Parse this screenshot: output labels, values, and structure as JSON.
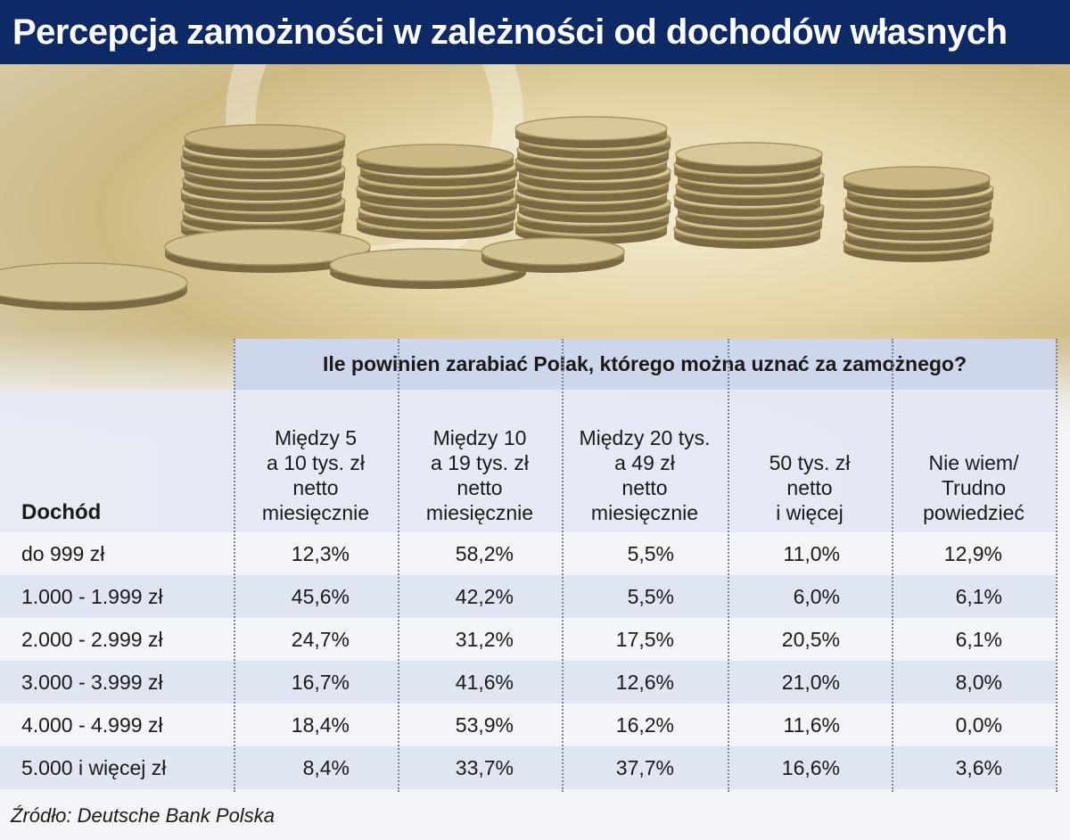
{
  "title": "Percepcja zamożności w zależności od dochodów własnych",
  "source": "Źródło: Deutsche Bank Polska",
  "chart_data": {
    "type": "table",
    "question": "Ile powinien zarabiać Polak, którego można uznać za zamożnego?",
    "row_header": "Dochód",
    "columns": [
      "Między 5\na 10 tys. zł\nnetto\nmiesięcznie",
      "Między 10\na 19 tys. zł\nnetto\nmiesięcznie",
      "Między 20 tys.\na 49 zł\nnetto\nmiesięcznie",
      "50 tys. zł\nnetto\ni więcej",
      "Nie wiem/\nTrudno\npowiedzieć"
    ],
    "rows": [
      {
        "label": "do 999 zł",
        "values": [
          "12,3%",
          "58,2%",
          "5,5%",
          "11,0%",
          "12,9%"
        ]
      },
      {
        "label": "1.000 - 1.999 zł",
        "values": [
          "45,6%",
          "42,2%",
          "5,5%",
          "6,0%",
          "6,1%"
        ]
      },
      {
        "label": "2.000 - 2.999 zł",
        "values": [
          "24,7%",
          "31,2%",
          "17,5%",
          "20,5%",
          "6,1%"
        ]
      },
      {
        "label": "3.000 - 3.999 zł",
        "values": [
          "16,7%",
          "41,6%",
          "12,6%",
          "21,0%",
          "8,0%"
        ]
      },
      {
        "label": "4.000 - 4.999 zł",
        "values": [
          "18,4%",
          "53,9%",
          "16,2%",
          "11,6%",
          "0,0%"
        ]
      },
      {
        "label": "5.000 i więcej zł",
        "values": [
          "8,4%",
          "33,7%",
          "37,7%",
          "16,6%",
          "3,6%"
        ]
      }
    ]
  },
  "colors": {
    "title_bar": "#0d2a66",
    "header_band": "#cdd6ea",
    "alt_row": "#dfe5f1"
  }
}
